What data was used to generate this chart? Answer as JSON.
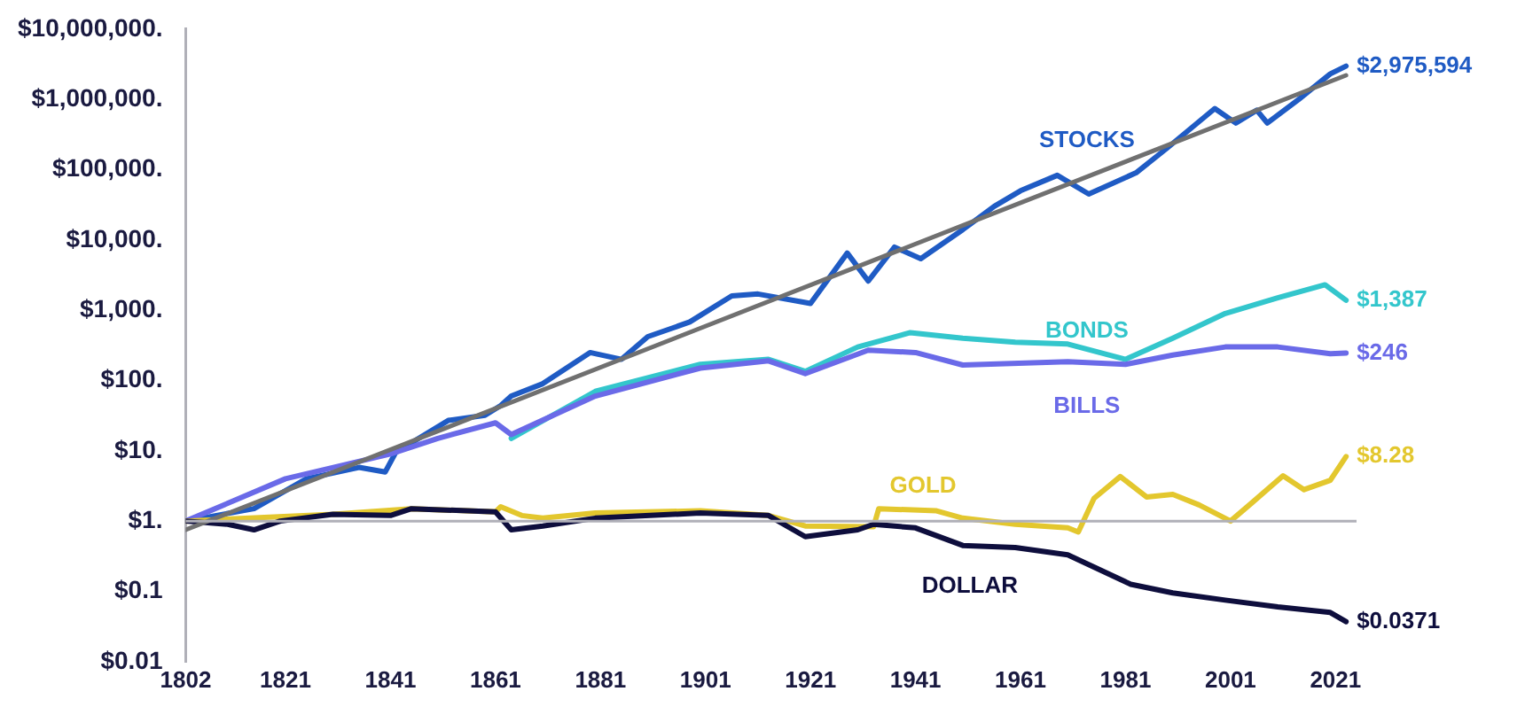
{
  "chart_data": {
    "type": "line",
    "log": "y",
    "legend": false,
    "grid": false,
    "marker": "none",
    "line_style": "solid",
    "xlim": [
      1802,
      2025
    ],
    "xticks": [
      1802,
      1821,
      1841,
      1861,
      1881,
      1901,
      1921,
      1941,
      1961,
      1981,
      2001,
      2021
    ],
    "ylim": [
      0.01,
      10000000
    ],
    "yticks": [
      {
        "value": 0.01,
        "label": "$0.01"
      },
      {
        "value": 0.1,
        "label": "$0.1"
      },
      {
        "value": 1,
        "label": "$1."
      },
      {
        "value": 10,
        "label": "$10."
      },
      {
        "value": 100,
        "label": "$100."
      },
      {
        "value": 1000,
        "label": "$1,000."
      },
      {
        "value": 10000,
        "label": "$10,000."
      },
      {
        "value": 100000,
        "label": "$100,000."
      },
      {
        "value": 1000000,
        "label": "$1,000,000."
      },
      {
        "value": 10000000,
        "label": "$10,000,000."
      }
    ],
    "ref_lines": [
      {
        "axis": "y",
        "value": 1,
        "label": null,
        "color": "#b0b0b8"
      }
    ],
    "series": [
      {
        "name": "STOCKS",
        "color": "#1f5bc4",
        "x": [
          1802,
          1815,
          1825,
          1835,
          1840,
          1842,
          1852,
          1859,
          1862,
          1864,
          1870,
          1879,
          1885,
          1890,
          1898,
          1906,
          1911,
          1921,
          1928,
          1932,
          1937,
          1942,
          1950,
          1956,
          1961,
          1968,
          1974,
          1983,
          1989,
          1998,
          2002,
          2006,
          2008,
          2014,
          2020,
          2023
        ],
        "values": [
          1,
          1.5,
          4,
          5.8,
          5,
          9.5,
          27,
          32,
          44,
          60,
          90,
          250,
          200,
          420,
          680,
          1600,
          1700,
          1250,
          6500,
          2600,
          7900,
          5400,
          14000,
          30000,
          50000,
          83000,
          45000,
          90000,
          205000,
          740000,
          460000,
          700000,
          460000,
          1000000,
          2300000,
          2975594
        ],
        "value_labels": [
          null,
          null,
          null,
          null,
          null,
          null,
          null,
          null,
          null,
          null,
          null,
          null,
          null,
          null,
          null,
          null,
          null,
          null,
          null,
          null,
          null,
          null,
          null,
          null,
          null,
          null,
          null,
          null,
          null,
          null,
          null,
          null,
          null,
          null,
          null,
          "$2,975,594"
        ]
      },
      {
        "name": "BONDS",
        "color": "#33c6cc",
        "x": [
          1864,
          1880,
          1900,
          1913,
          1920,
          1930,
          1940,
          1950,
          1960,
          1970,
          1981,
          1990,
          2000,
          2010,
          2019,
          2023
        ],
        "values": [
          15,
          70,
          170,
          200,
          135,
          300,
          480,
          400,
          350,
          330,
          200,
          400,
          900,
          1500,
          2300,
          1387
        ],
        "value_labels": [
          null,
          null,
          null,
          null,
          null,
          null,
          null,
          null,
          null,
          null,
          null,
          null,
          null,
          null,
          null,
          "$1,387"
        ]
      },
      {
        "name": "BILLS",
        "color": "#6a6ae8",
        "x": [
          1802,
          1821,
          1841,
          1850,
          1861,
          1864,
          1880,
          1900,
          1913,
          1920,
          1932,
          1941,
          1950,
          1970,
          1981,
          1990,
          2000,
          2010,
          2020,
          2023
        ],
        "values": [
          1,
          4,
          9,
          15,
          25,
          17,
          60,
          150,
          190,
          125,
          270,
          250,
          166,
          185,
          170,
          230,
          300,
          300,
          240,
          246
        ],
        "value_labels": [
          null,
          null,
          null,
          null,
          null,
          null,
          null,
          null,
          null,
          null,
          null,
          null,
          null,
          null,
          null,
          null,
          null,
          null,
          null,
          "$246"
        ]
      },
      {
        "name": "GOLD",
        "color": "#e3c72e",
        "x": [
          1802,
          1830,
          1845,
          1861,
          1862,
          1866,
          1870,
          1880,
          1900,
          1913,
          1920,
          1933,
          1934,
          1945,
          1950,
          1960,
          1970,
          1972,
          1975,
          1980,
          1985,
          1990,
          1995,
          2001,
          2005,
          2011,
          2015,
          2020,
          2023
        ],
        "values": [
          1,
          1.25,
          1.5,
          1.35,
          1.6,
          1.2,
          1.1,
          1.3,
          1.4,
          1.2,
          0.85,
          0.83,
          1.5,
          1.4,
          1.1,
          0.9,
          0.8,
          0.7,
          2.1,
          4.3,
          2.2,
          2.4,
          1.7,
          1,
          1.8,
          4.4,
          2.8,
          3.8,
          8.28
        ],
        "value_labels": [
          null,
          null,
          null,
          null,
          null,
          null,
          null,
          null,
          null,
          null,
          null,
          null,
          null,
          null,
          null,
          null,
          null,
          null,
          null,
          null,
          null,
          null,
          null,
          null,
          null,
          null,
          null,
          null,
          "$8.28"
        ]
      },
      {
        "name": "DOLLAR",
        "color": "#0e0e3d",
        "x": [
          1802,
          1810,
          1815,
          1820,
          1830,
          1841,
          1845,
          1861,
          1864,
          1870,
          1880,
          1900,
          1913,
          1920,
          1930,
          1933,
          1941,
          1950,
          1960,
          1970,
          1982,
          1990,
          2000,
          2010,
          2020,
          2023
        ],
        "values": [
          1,
          0.9,
          0.75,
          1,
          1.25,
          1.2,
          1.5,
          1.35,
          0.75,
          0.85,
          1.1,
          1.3,
          1.2,
          0.6,
          0.75,
          0.9,
          0.8,
          0.45,
          0.42,
          0.33,
          0.126,
          0.095,
          0.075,
          0.06,
          0.05,
          0.0371
        ],
        "value_labels": [
          null,
          null,
          null,
          null,
          null,
          null,
          null,
          null,
          null,
          null,
          null,
          null,
          null,
          null,
          null,
          null,
          null,
          null,
          null,
          null,
          null,
          null,
          null,
          null,
          null,
          "$0.0371"
        ]
      },
      {
        "color": "#707070",
        "x": [
          1802,
          2023
        ],
        "values": [
          0.75,
          2200000
        ]
      }
    ]
  }
}
